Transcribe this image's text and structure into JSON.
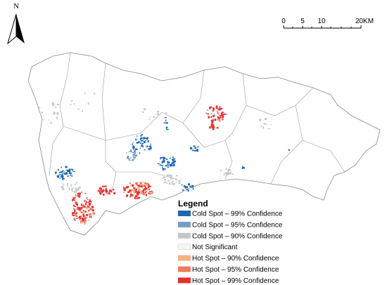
{
  "north_label": "N",
  "scale_bar": {
    "labels": [
      "0",
      "5",
      "10",
      "20KM"
    ]
  },
  "legend": {
    "title": "Legend",
    "items": [
      {
        "label": "Cold Spot – 99% Confidence",
        "color": "#1f68b0"
      },
      {
        "label": "Cold Spot – 95% Confidence",
        "color": "#7b9cc2"
      },
      {
        "label": "Cold Spot – 90% Confidence",
        "color": "#c3c9c8"
      },
      {
        "label": "Not Significant",
        "color": "#f7f7f2"
      },
      {
        "label": "Hot Spot – 90% Confidence",
        "color": "#f5b184"
      },
      {
        "label": "Hot Spot – 95% Confidence",
        "color": "#f07c5c"
      },
      {
        "label": "Hot Spot – 99% Confidence",
        "color": "#e8302c"
      }
    ]
  }
}
